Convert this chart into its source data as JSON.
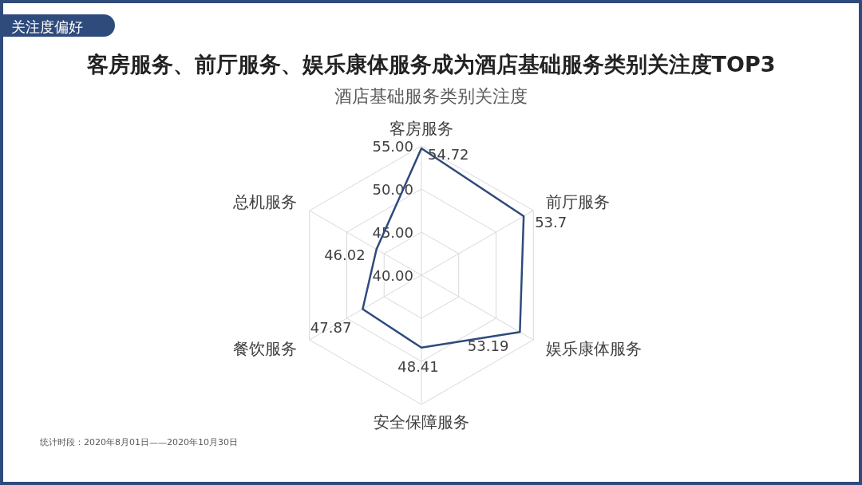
{
  "chart_data": {
    "type": "radar",
    "title": "客房服务、前厅服务、娱乐康体服务成为酒店基础服务类别关注度TOP3",
    "subtitle": "酒店基础服务类别关注度",
    "categories": [
      "客房服务",
      "前厅服务",
      "娱乐康体服务",
      "安全保障服务",
      "餐饮服务",
      "总机服务"
    ],
    "series": [
      {
        "color": "#2f4b7c",
        "values": [
          54.72,
          53.7,
          53.19,
          48.41,
          47.87,
          46.02
        ]
      }
    ],
    "ylim": [
      40,
      55
    ],
    "yticks": [
      {
        "value": 40,
        "label": "40.00"
      },
      {
        "value": 45,
        "label": "45.00"
      },
      {
        "value": 50,
        "label": "50.00"
      },
      {
        "value": 55,
        "label": "55.00"
      }
    ],
    "grid": true,
    "data_labels": true,
    "marker": "none",
    "line_style": "solid",
    "annotations": [
      "关注度偏好",
      "统计时段：2020年8月01日——2020年10月30日"
    ]
  }
}
